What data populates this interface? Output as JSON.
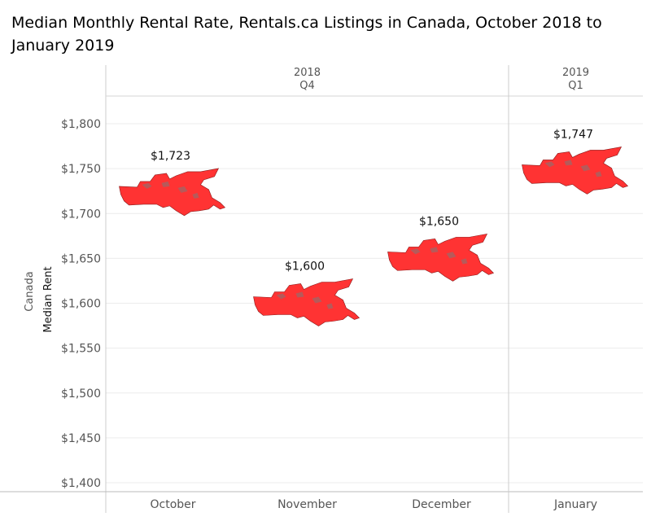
{
  "chart_data": {
    "type": "scatter",
    "title": "Median Monthly Rental Rate, Rentals.ca Listings in Canada, October 2018 to January 2019",
    "ylabel_outer": "Canada",
    "ylabel": "Median Rent",
    "ylim": [
      1390,
      1830
    ],
    "y_ticks": [
      1400,
      1450,
      1500,
      1550,
      1600,
      1650,
      1700,
      1750,
      1800
    ],
    "y_tick_labels": [
      "$1,400",
      "$1,450",
      "$1,500",
      "$1,550",
      "$1,600",
      "$1,650",
      "$1,700",
      "$1,750",
      "$1,800"
    ],
    "groups": [
      {
        "year": "2018",
        "quarter": "Q4",
        "months": [
          "October",
          "November",
          "December"
        ]
      },
      {
        "year": "2019",
        "quarter": "Q1",
        "months": [
          "January"
        ]
      }
    ],
    "categories": [
      "October",
      "November",
      "December",
      "January"
    ],
    "values": [
      1723,
      1600,
      1650,
      1747
    ],
    "data_labels": [
      "$1,723",
      "$1,600",
      "$1,650",
      "$1,747"
    ],
    "marker": "canada-map-icon",
    "marker_color": "#ff3333",
    "grid": true
  }
}
